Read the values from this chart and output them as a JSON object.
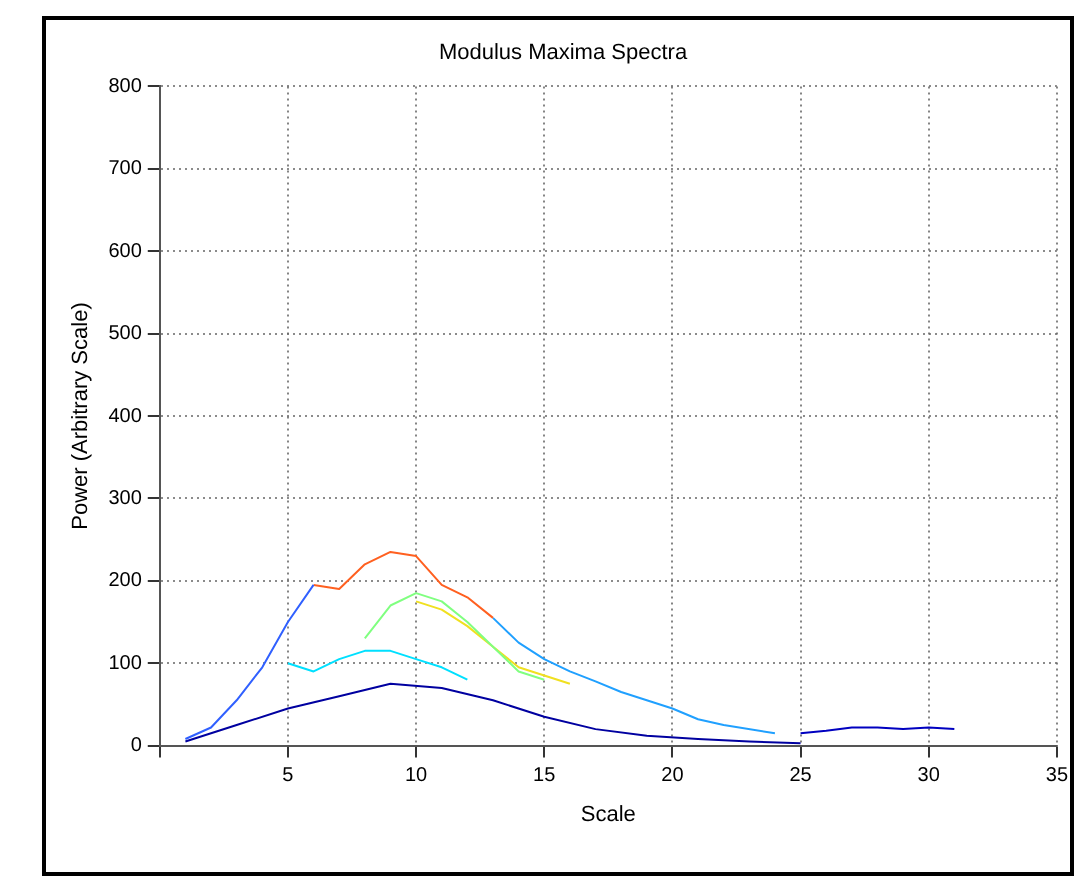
{
  "chart_data": {
    "type": "line",
    "title": "Modulus Maxima Spectra",
    "xlabel": "Scale",
    "ylabel": "Power (Arbitrary Scale)",
    "xlim": [
      0,
      35
    ],
    "xticks": [
      {
        "value": 0,
        "label": null
      },
      5,
      10,
      15,
      20,
      25,
      30,
      35
    ],
    "ylim": [
      0,
      800
    ],
    "yticks": [
      0,
      100,
      200,
      300,
      400,
      500,
      600,
      700,
      800
    ],
    "grid": true,
    "legend": false,
    "marker": "none",
    "line_style": "solid",
    "series": [
      {
        "color": "#3060ff",
        "x": [
          1,
          2,
          3,
          4,
          5,
          6
        ],
        "values": [
          8,
          22,
          55,
          95,
          150,
          195
        ]
      },
      {
        "color": "#ff6020",
        "x": [
          6,
          7,
          8,
          9,
          10,
          11,
          12,
          13
        ],
        "values": [
          195,
          190,
          220,
          235,
          230,
          195,
          180,
          155
        ]
      },
      {
        "color": "#20a0ff",
        "x": [
          13,
          14,
          15,
          16,
          17,
          18,
          19,
          20,
          21,
          22,
          24
        ],
        "values": [
          155,
          125,
          105,
          90,
          78,
          65,
          55,
          45,
          32,
          25,
          15
        ]
      },
      {
        "color": "#80ff80",
        "x": [
          8,
          9,
          10,
          11,
          12,
          13,
          14,
          15
        ],
        "values": [
          130,
          170,
          185,
          175,
          150,
          120,
          90,
          80
        ]
      },
      {
        "color": "#f0e020",
        "x": [
          10,
          11,
          12,
          13,
          14,
          15,
          16
        ],
        "values": [
          175,
          165,
          145,
          120,
          95,
          85,
          75
        ]
      },
      {
        "color": "#00e0ff",
        "x": [
          5,
          6,
          7,
          8,
          9,
          10,
          11,
          12
        ],
        "values": [
          100,
          90,
          105,
          115,
          115,
          105,
          95,
          80
        ]
      },
      {
        "color": "#0000a0",
        "x": [
          1,
          3,
          5,
          7,
          9,
          11,
          13,
          15,
          17,
          19,
          21,
          23,
          25
        ],
        "values": [
          5,
          25,
          45,
          60,
          75,
          70,
          55,
          35,
          20,
          12,
          8,
          5,
          3
        ]
      },
      {
        "color": "#0000c0",
        "x": [
          25,
          26,
          27,
          28,
          29,
          30,
          31
        ],
        "values": [
          15,
          18,
          22,
          22,
          20,
          22,
          20
        ]
      }
    ]
  }
}
